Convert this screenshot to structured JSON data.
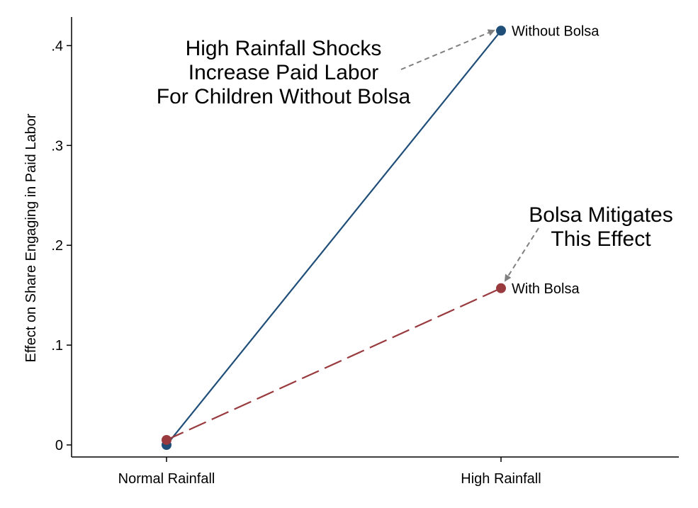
{
  "chart_data": {
    "type": "line",
    "title": "",
    "xlabel": "",
    "ylabel": "Effect on Share Engaging in Paid Labor",
    "categories": [
      "Normal Rainfall",
      "High Rainfall"
    ],
    "ylim": [
      0,
      0.43
    ],
    "yticks": [
      {
        "value": 0,
        "label": "0"
      },
      {
        "value": 0.1,
        "label": ".1"
      },
      {
        "value": 0.2,
        "label": ".2"
      },
      {
        "value": 0.3,
        "label": ".3"
      },
      {
        "value": 0.4,
        "label": ".4"
      }
    ],
    "grid": false,
    "legend": "none",
    "series": [
      {
        "name": "Without Bolsa",
        "values": [
          0,
          0.415
        ],
        "color": "#1f4e79",
        "dash": "solid"
      },
      {
        "name": "With Bolsa",
        "values": [
          0.005,
          0.157
        ],
        "color": "#993a3f",
        "dash": "long-dash"
      }
    ],
    "annotations": [
      {
        "lines": [
          "High Rainfall Shocks",
          "Increase Paid Labor",
          "For Children Without Bolsa"
        ],
        "target_series": 0,
        "target_index": 1
      },
      {
        "lines": [
          "Bolsa Mitigates",
          "This Effect"
        ],
        "target_series": 1,
        "target_index": 1
      }
    ],
    "arrow_color": "#808080"
  }
}
